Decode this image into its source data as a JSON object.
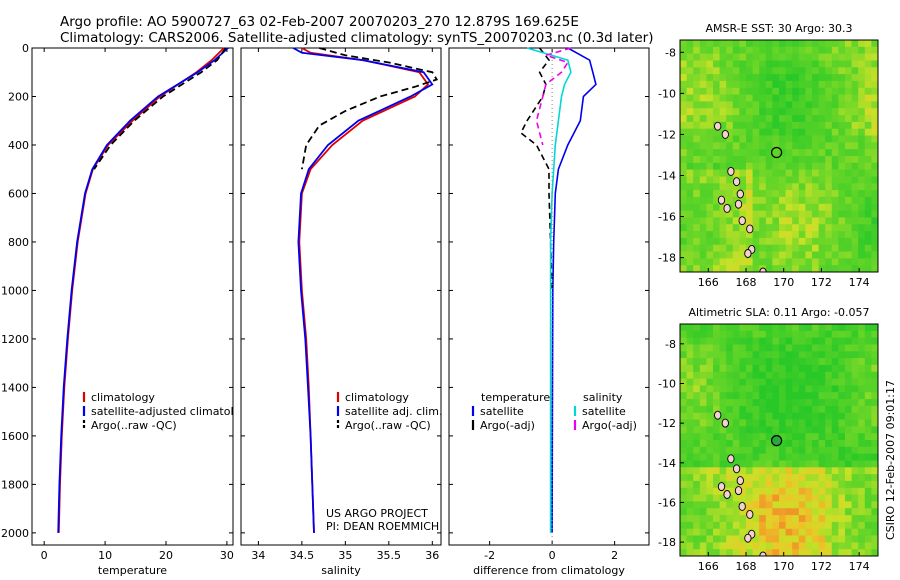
{
  "header": {
    "line1": "Argo profile: AO 5900727_63 02-Feb-2007 20070203_270 12.879S 169.625E",
    "line2": "Climatology: CARS2006. Satellite-adjusted climatology: synTS_20070203.nc (0.3d later)"
  },
  "colors": {
    "climatology": "#e00000",
    "satellite": "#0000ee",
    "argo": "#000000",
    "salinity_satellite": "#00d8d8",
    "salinity_argo": "#ee00ee"
  },
  "chart_data": [
    {
      "type": "line",
      "name": "temperature-profile",
      "xlabel": "temperature",
      "ylabel": "",
      "xlim": [
        -2,
        31
      ],
      "ylim": [
        2050,
        0
      ],
      "xticks": [
        "0",
        "10",
        "20",
        "30"
      ],
      "yticks": [
        "0",
        "200",
        "400",
        "600",
        "800",
        "1000",
        "1200",
        "1400",
        "1600",
        "1800",
        "2000"
      ],
      "legend": [
        "climatology",
        "satellite-adjusted climatology",
        "Argo(..raw -QC)"
      ],
      "series": [
        {
          "name": "climatology",
          "depth": [
            0,
            50,
            100,
            200,
            300,
            400,
            500,
            600,
            800,
            1000,
            1200,
            1400,
            1600,
            1800,
            2000
          ],
          "values": [
            29.5,
            27.5,
            25.0,
            19.0,
            14.5,
            10.5,
            8.0,
            6.8,
            5.5,
            4.6,
            3.9,
            3.3,
            2.9,
            2.6,
            2.4
          ]
        },
        {
          "name": "satellite-adjusted climatology",
          "depth": [
            0,
            50,
            100,
            200,
            300,
            400,
            500,
            600,
            800,
            1000,
            1200,
            1400,
            1600,
            1800,
            2000
          ],
          "values": [
            30.2,
            28.0,
            25.2,
            18.7,
            14.1,
            10.3,
            7.9,
            6.7,
            5.4,
            4.5,
            3.8,
            3.2,
            2.8,
            2.5,
            2.3
          ]
        },
        {
          "name": "Argo(..raw -QC)",
          "depth": [
            0,
            50,
            100,
            200,
            300,
            400,
            500
          ],
          "values": [
            29.8,
            28.4,
            25.8,
            19.5,
            14.8,
            10.9,
            8.2
          ]
        }
      ]
    },
    {
      "type": "line",
      "name": "salinity-profile",
      "xlabel": "salinity",
      "xlim": [
        33.8,
        36.1
      ],
      "ylim": [
        2050,
        0
      ],
      "xticks": [
        "34",
        "34.5",
        "35",
        "35.5",
        "36"
      ],
      "legend": [
        "climatology",
        "satellite adj. clim.",
        "Argo(..raw -QC)"
      ],
      "annotation": [
        "US ARGO PROJECT",
        "PI: DEAN ROEMMICH"
      ],
      "series": [
        {
          "name": "climatology",
          "depth": [
            0,
            20,
            50,
            100,
            150,
            200,
            250,
            300,
            400,
            500,
            600,
            800,
            1000,
            1200,
            1400,
            1600,
            1800,
            2000
          ],
          "values": [
            34.5,
            34.6,
            35.2,
            35.85,
            35.95,
            35.8,
            35.5,
            35.2,
            34.85,
            34.6,
            34.5,
            34.47,
            34.5,
            34.55,
            34.58,
            34.6,
            34.62,
            34.64
          ]
        },
        {
          "name": "satellite adj. clim.",
          "depth": [
            0,
            20,
            50,
            100,
            150,
            200,
            250,
            300,
            400,
            500,
            600,
            800,
            1000,
            1200,
            1400,
            1600,
            1800,
            2000
          ],
          "values": [
            34.4,
            34.5,
            35.2,
            35.9,
            36.0,
            35.75,
            35.45,
            35.15,
            34.8,
            34.58,
            34.49,
            34.46,
            34.49,
            34.54,
            34.57,
            34.6,
            34.62,
            34.64
          ]
        },
        {
          "name": "Argo(..raw -QC)",
          "depth": [
            0,
            30,
            60,
            100,
            130,
            160,
            200,
            260,
            320,
            400,
            500
          ],
          "values": [
            34.7,
            35.0,
            35.5,
            36.0,
            36.05,
            35.8,
            35.4,
            35.0,
            34.7,
            34.55,
            34.5
          ]
        }
      ]
    },
    {
      "type": "line",
      "name": "difference-profile",
      "xlabel": "difference from climatology",
      "xlim": [
        -3.3,
        3.1
      ],
      "ylim": [
        2050,
        0
      ],
      "xticks": [
        "-2",
        "0",
        "2"
      ],
      "legend_temperature": [
        "temperature",
        "satellite",
        "Argo(-adj)"
      ],
      "legend_salinity": [
        "salinity",
        "satellite",
        "Argo(-adj)"
      ],
      "series": [
        {
          "name": "temperature satellite",
          "depth": [
            0,
            50,
            100,
            150,
            200,
            300,
            400,
            500,
            600,
            800,
            1000,
            1500,
            2000
          ],
          "values": [
            0.5,
            1.2,
            1.3,
            1.4,
            1.0,
            0.9,
            0.5,
            0.2,
            0.1,
            0.05,
            0.02,
            0.01,
            0.0
          ]
        },
        {
          "name": "temperature Argo(-adj)",
          "depth": [
            0,
            50,
            100,
            150,
            200,
            300,
            350,
            400,
            500,
            600,
            800,
            1000
          ],
          "values": [
            -0.4,
            -0.1,
            -0.4,
            -0.2,
            -0.3,
            -0.8,
            -1.0,
            -0.5,
            -0.1,
            -0.1,
            -0.05,
            0.0
          ]
        },
        {
          "name": "salinity satellite",
          "depth": [
            0,
            50,
            100,
            150,
            200,
            300,
            400,
            500,
            600,
            800,
            1000,
            1500,
            2000
          ],
          "values": [
            -0.8,
            0.5,
            0.6,
            0.4,
            0.3,
            0.2,
            0.1,
            0.05,
            0.0,
            -0.05,
            -0.05,
            -0.05,
            -0.05
          ]
        },
        {
          "name": "salinity Argo(-adj)",
          "depth": [
            0,
            30,
            60,
            100,
            150,
            200,
            300,
            400
          ],
          "values": [
            0.6,
            -0.2,
            0.5,
            0.3,
            -0.2,
            -0.3,
            -0.5,
            -0.3
          ]
        }
      ]
    },
    {
      "type": "heatmap",
      "name": "sst-map",
      "title": "AMSR-E SST: 30 Argo: 30.3",
      "xlim": [
        164.5,
        175
      ],
      "ylim": [
        -18.7,
        -7.4
      ],
      "xticks": [
        "166",
        "168",
        "170",
        "172",
        "174"
      ],
      "yticks": [
        "-8",
        "-10",
        "-12",
        "-14",
        "-16",
        "-18"
      ],
      "marker": {
        "lon": 169.625,
        "lat": -12.879
      }
    },
    {
      "type": "heatmap",
      "name": "sla-map",
      "title": "Altimetric SLA: 0.11 Argo: -0.057",
      "xlim": [
        164.5,
        175
      ],
      "ylim": [
        -18.7,
        -7.0
      ],
      "xticks": [
        "166",
        "168",
        "170",
        "172",
        "174"
      ],
      "yticks": [
        "-8",
        "-10",
        "-12",
        "-14",
        "-16",
        "-18"
      ],
      "marker": {
        "lon": 169.625,
        "lat": -12.879
      },
      "side_label": "CSIRO 12-Feb-2007 09:01:17"
    }
  ]
}
